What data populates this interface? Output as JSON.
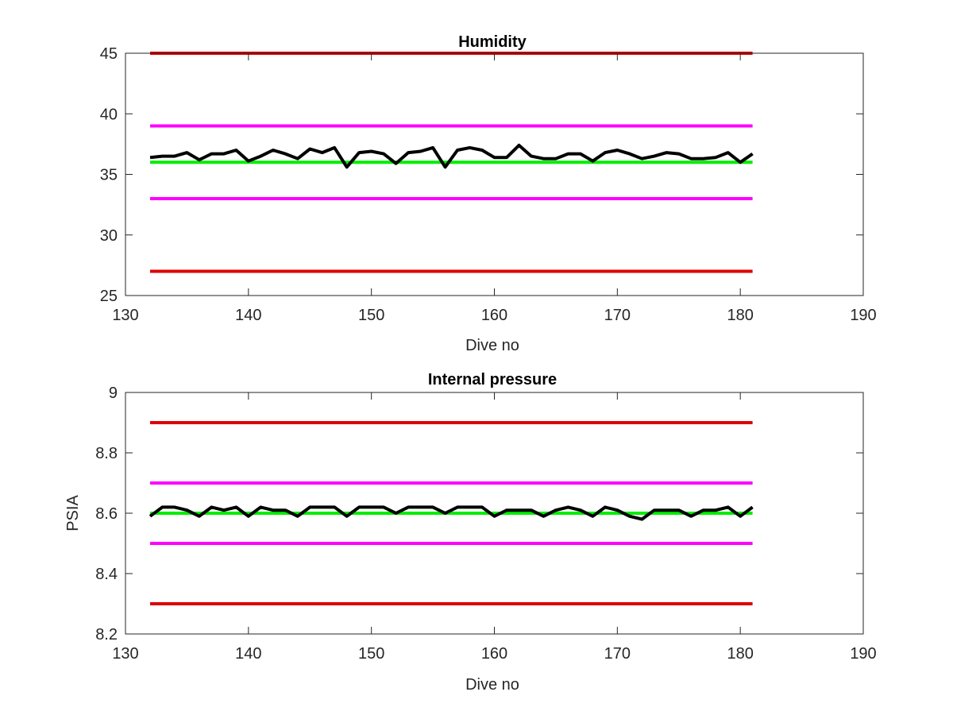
{
  "chart_data": [
    {
      "type": "line",
      "title": "Humidity",
      "xlabel": "Dive no",
      "ylabel": "",
      "xlim": [
        130,
        190
      ],
      "ylim": [
        25,
        45
      ],
      "xticks": [
        130,
        140,
        150,
        160,
        170,
        180,
        190
      ],
      "yticks": [
        25,
        30,
        35,
        40,
        45
      ],
      "xtick_labels": [
        "130",
        "140",
        "150",
        "160",
        "170",
        "180",
        "190"
      ],
      "ytick_labels": [
        "25",
        "30",
        "35",
        "40",
        "45"
      ],
      "grid": false,
      "series": [
        {
          "role": "limit",
          "color": "#dd0000",
          "x": [
            132,
            181
          ],
          "y": [
            45,
            45
          ]
        },
        {
          "role": "limit",
          "color": "#dd0000",
          "x": [
            132,
            181
          ],
          "y": [
            27,
            27
          ]
        },
        {
          "role": "limit",
          "color": "#ff00ff",
          "x": [
            132,
            181
          ],
          "y": [
            39,
            39
          ]
        },
        {
          "role": "limit",
          "color": "#ff00ff",
          "x": [
            132,
            181
          ],
          "y": [
            33,
            33
          ]
        },
        {
          "role": "limit",
          "color": "#00ee00",
          "x": [
            132,
            181
          ],
          "y": [
            36,
            36
          ]
        },
        {
          "role": "data",
          "color": "#000000",
          "x": [
            132,
            133,
            134,
            135,
            136,
            137,
            138,
            139,
            140,
            141,
            142,
            143,
            144,
            145,
            146,
            147,
            148,
            149,
            150,
            151,
            152,
            153,
            154,
            155,
            156,
            157,
            158,
            159,
            160,
            161,
            162,
            163,
            164,
            165,
            166,
            167,
            168,
            169,
            170,
            171,
            172,
            173,
            174,
            175,
            176,
            177,
            178,
            179,
            180,
            181
          ],
          "y": [
            36.4,
            36.5,
            36.5,
            36.8,
            36.2,
            36.7,
            36.7,
            37.0,
            36.1,
            36.5,
            37.0,
            36.7,
            36.3,
            37.1,
            36.8,
            37.2,
            35.6,
            36.8,
            36.9,
            36.7,
            35.9,
            36.8,
            36.9,
            37.2,
            35.6,
            37.0,
            37.2,
            37.0,
            36.4,
            36.4,
            37.4,
            36.5,
            36.3,
            36.3,
            36.7,
            36.7,
            36.1,
            36.8,
            37.0,
            36.7,
            36.3,
            36.5,
            36.8,
            36.7,
            36.3,
            36.3,
            36.4,
            36.8,
            36.0,
            36.7
          ]
        }
      ]
    },
    {
      "type": "line",
      "title": "Internal pressure",
      "xlabel": "Dive no",
      "ylabel": "PSIA",
      "xlim": [
        130,
        190
      ],
      "ylim": [
        8.2,
        9.0
      ],
      "xticks": [
        130,
        140,
        150,
        160,
        170,
        180,
        190
      ],
      "yticks": [
        8.2,
        8.4,
        8.6,
        8.8,
        9.0
      ],
      "xtick_labels": [
        "130",
        "140",
        "150",
        "160",
        "170",
        "180",
        "190"
      ],
      "ytick_labels": [
        "8.2",
        "8.4",
        "8.6",
        "8.8",
        "9"
      ],
      "grid": false,
      "series": [
        {
          "role": "limit",
          "color": "#dd0000",
          "x": [
            132,
            181
          ],
          "y": [
            8.9,
            8.9
          ]
        },
        {
          "role": "limit",
          "color": "#dd0000",
          "x": [
            132,
            181
          ],
          "y": [
            8.3,
            8.3
          ]
        },
        {
          "role": "limit",
          "color": "#ff00ff",
          "x": [
            132,
            181
          ],
          "y": [
            8.7,
            8.7
          ]
        },
        {
          "role": "limit",
          "color": "#ff00ff",
          "x": [
            132,
            181
          ],
          "y": [
            8.5,
            8.5
          ]
        },
        {
          "role": "limit",
          "color": "#00ee00",
          "x": [
            132,
            181
          ],
          "y": [
            8.6,
            8.6
          ]
        },
        {
          "role": "data",
          "color": "#000000",
          "x": [
            132,
            133,
            134,
            135,
            136,
            137,
            138,
            139,
            140,
            141,
            142,
            143,
            144,
            145,
            146,
            147,
            148,
            149,
            150,
            151,
            152,
            153,
            154,
            155,
            156,
            157,
            158,
            159,
            160,
            161,
            162,
            163,
            164,
            165,
            166,
            167,
            168,
            169,
            170,
            171,
            172,
            173,
            174,
            175,
            176,
            177,
            178,
            179,
            180,
            181
          ],
          "y": [
            8.59,
            8.62,
            8.62,
            8.61,
            8.59,
            8.62,
            8.61,
            8.62,
            8.59,
            8.62,
            8.61,
            8.61,
            8.59,
            8.62,
            8.62,
            8.62,
            8.59,
            8.62,
            8.62,
            8.62,
            8.6,
            8.62,
            8.62,
            8.62,
            8.6,
            8.62,
            8.62,
            8.62,
            8.59,
            8.61,
            8.61,
            8.61,
            8.59,
            8.61,
            8.62,
            8.61,
            8.59,
            8.62,
            8.61,
            8.59,
            8.58,
            8.61,
            8.61,
            8.61,
            8.59,
            8.61,
            8.61,
            8.62,
            8.59,
            8.62
          ]
        }
      ]
    }
  ]
}
